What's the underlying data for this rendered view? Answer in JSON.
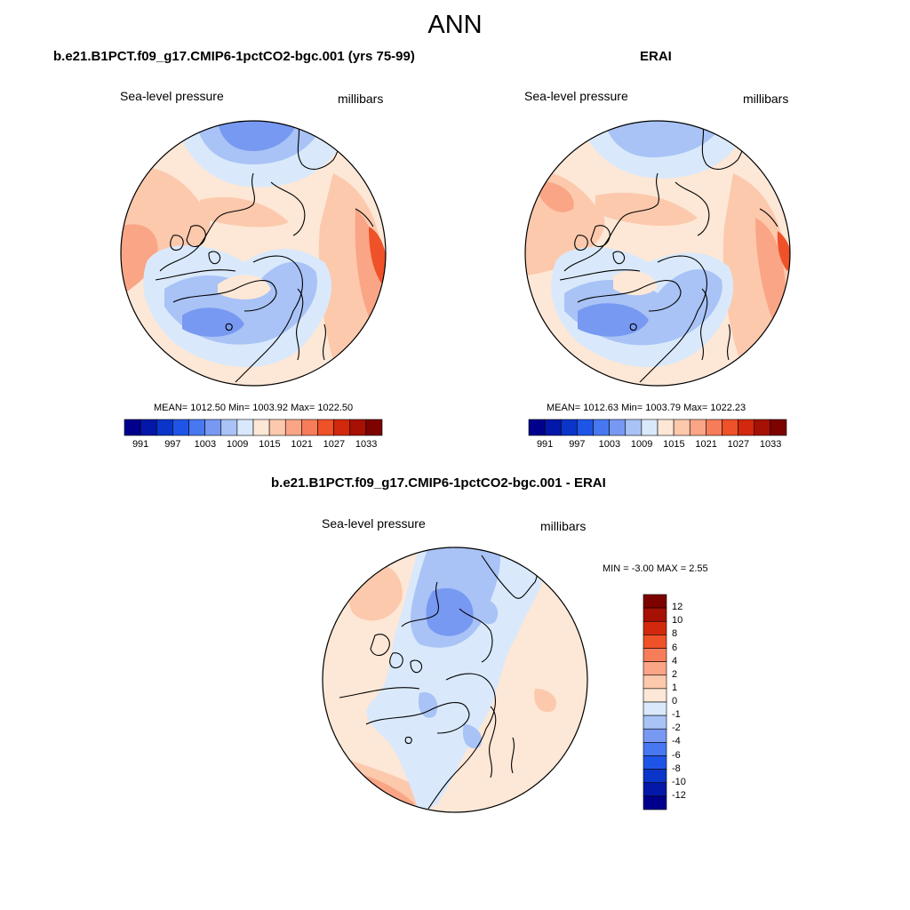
{
  "figure": {
    "title": "ANN"
  },
  "panels": [
    {
      "title": "b.e21.B1PCT.f09_g17.CMIP6-1pctCO2-bgc.001 (yrs 75-99)",
      "left_label": "Sea-level pressure",
      "right_label": "millibars",
      "stats": "MEAN= 1012.50  Min= 1003.92  Max= 1022.50"
    },
    {
      "title": "ERAI",
      "left_label": "Sea-level pressure",
      "right_label": "millibars",
      "stats": "MEAN= 1012.63  Min= 1003.79  Max= 1022.23"
    },
    {
      "title": "b.e21.B1PCT.f09_g17.CMIP6-1pctCO2-bgc.001 - ERAI",
      "left_label": "Sea-level pressure",
      "right_label": "millibars",
      "stats": "MIN =  -3.00 MAX =   2.55"
    }
  ],
  "abs_colorbar": {
    "colors": [
      "#00008c",
      "#0318a8",
      "#0b35c8",
      "#1f55e6",
      "#4778f0",
      "#7899f2",
      "#a9c3f6",
      "#d9e9fb",
      "#fde7d6",
      "#fcc9ad",
      "#f9a586",
      "#f77c5a",
      "#ef5128",
      "#d2280d",
      "#a61005",
      "#7c0300"
    ],
    "tick_labels": [
      "991",
      "997",
      "1003",
      "1009",
      "1015",
      "1021",
      "1027",
      "1033"
    ]
  },
  "diff_colorbar": {
    "colors": [
      "#00008c",
      "#0318a8",
      "#0b35c8",
      "#1f55e6",
      "#4778f0",
      "#7899f2",
      "#a9c3f6",
      "#d9e9fb",
      "#fde7d6",
      "#fcc9ad",
      "#f9a586",
      "#f77c5a",
      "#ef5128",
      "#d2280d",
      "#a61005",
      "#7c0300"
    ],
    "tick_labels": [
      "12",
      "10",
      "8",
      "6",
      "4",
      "2",
      "1",
      "0",
      "-1",
      "-2",
      "-4",
      "-6",
      "-8",
      "-10",
      "-12"
    ]
  },
  "field_colors": {
    "high_strong": "#ef5128",
    "high": "#f9a586",
    "high_mild": "#fcc9ad",
    "neutral_warm": "#fde7d6",
    "neutral_cool": "#d9e9fb",
    "low_mild": "#a9c3f6",
    "low": "#7899f2"
  }
}
